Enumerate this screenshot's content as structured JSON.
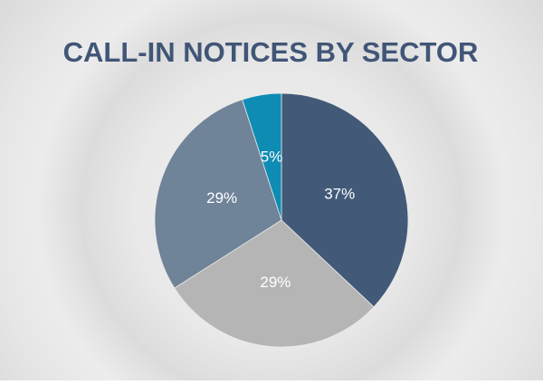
{
  "chart_data": {
    "type": "pie",
    "title": "CALL-IN NOTICES BY SECTOR",
    "values": [
      37,
      29,
      29,
      5
    ],
    "value_labels": [
      "37%",
      "29%",
      "29%",
      "5%"
    ],
    "colors": [
      "#425a78",
      "#b5b5b5",
      "#6f8399",
      "#0e8cb4"
    ]
  }
}
